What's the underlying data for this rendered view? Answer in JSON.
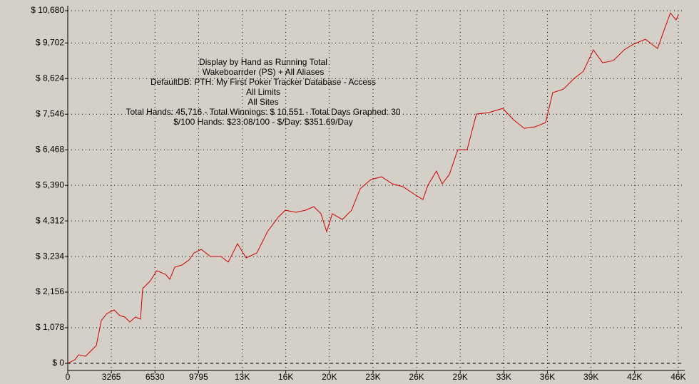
{
  "chart_data": {
    "type": "line",
    "annotation": [
      "Display by Hand as Running Total",
      "Wakeboarrder (PS) + All Aliases",
      "DefaultDB: PTH: My First Poker Tracker Database - Access",
      "All Limits",
      "All Sites",
      "Total Hands: 45,716 - Total Winnings: $ 10,551 - Total Days Graphed: 30",
      "$/100 Hands: $23.08/100 - $/Day: $351.69/Day"
    ],
    "xlim": [
      0,
      45716
    ],
    "ylim": [
      -216,
      10680
    ],
    "xticks": [
      0,
      3265,
      6530,
      9795,
      {
        "value": 13060,
        "label": "13K"
      },
      {
        "value": 16325,
        "label": "16K"
      },
      {
        "value": 19590,
        "label": "20K"
      },
      {
        "value": 22855,
        "label": "23K"
      },
      {
        "value": 26120,
        "label": "26K"
      },
      {
        "value": 29385,
        "label": "29K"
      },
      {
        "value": 32650,
        "label": "33K"
      },
      {
        "value": 35915,
        "label": "36K"
      },
      {
        "value": 39180,
        "label": "39K"
      },
      {
        "value": 42445,
        "label": "42K"
      },
      {
        "value": 45710,
        "label": "46K"
      }
    ],
    "yticks": [
      {
        "value": 0,
        "label": "$ 0"
      },
      {
        "value": 1078,
        "label": "$ 1,078"
      },
      {
        "value": 2156,
        "label": "$ 2,156"
      },
      {
        "value": 3234,
        "label": "$ 3,234"
      },
      {
        "value": 4312,
        "label": "$ 4,312"
      },
      {
        "value": 5390,
        "label": "$ 5,390"
      },
      {
        "value": 6468,
        "label": "$ 6,468"
      },
      {
        "value": 7546,
        "label": "$ 7,546"
      },
      {
        "value": 8624,
        "label": "$ 8,624"
      },
      {
        "value": 9702,
        "label": "$ 9,702"
      },
      {
        "value": 10680,
        "label": "$ 10,680"
      }
    ],
    "grid": true,
    "series": [
      {
        "color": "#cc0000",
        "x": [
          0,
          534,
          800,
          1335,
          1762,
          2136,
          2510,
          2937,
          3471,
          3898,
          4272,
          4646,
          5073,
          5447,
          5607,
          6141,
          6675,
          7316,
          7636,
          8010,
          8544,
          9078,
          9452,
          9986,
          10680,
          11481,
          12015,
          12709,
          13350,
          14151,
          14952,
          15753,
          16287,
          17088,
          17782,
          18423,
          18957,
          19384,
          19811,
          20559,
          21253,
          21894,
          22695,
          23496,
          24297,
          25098,
          25899,
          26593,
          26967,
          27608,
          28035,
          28569,
          29210,
          29904,
          30598,
          31506,
          32574,
          33375,
          34176,
          34977,
          35778,
          36312,
          37113,
          37914,
          38608,
          39356,
          40050,
          40851,
          41652,
          42346,
          43254,
          44162,
          44696,
          45123,
          45550,
          45716
        ],
        "values": [
          0,
          108,
          259,
          216,
          388,
          539,
          1294,
          1510,
          1618,
          1445,
          1402,
          1251,
          1402,
          1337,
          2265,
          2481,
          2804,
          2696,
          2545,
          2912,
          2977,
          3128,
          3343,
          3451,
          3236,
          3236,
          3063,
          3624,
          3192,
          3343,
          3990,
          4422,
          4637,
          4573,
          4637,
          4745,
          4530,
          3990,
          4530,
          4357,
          4637,
          5285,
          5565,
          5651,
          5436,
          5350,
          5134,
          4961,
          5393,
          5824,
          5436,
          5716,
          6471,
          6471,
          7550,
          7593,
          7722,
          7377,
          7118,
          7161,
          7291,
          8197,
          8305,
          8628,
          8844,
          9491,
          9103,
          9168,
          9491,
          9664,
          9815,
          9534,
          10138,
          10612,
          10397,
          10551
        ]
      }
    ]
  }
}
